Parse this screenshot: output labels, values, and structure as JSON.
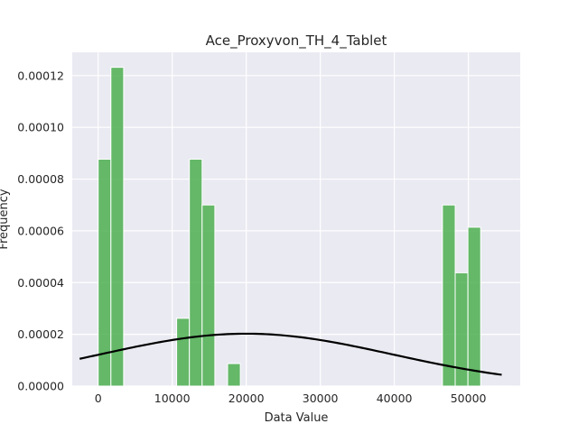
{
  "chart_data": {
    "type": "bar",
    "title": "Ace_Proxyvon_TH_4_Tablet",
    "xlabel": "Data Value",
    "ylabel": "Frequency",
    "xlim": [
      -3500,
      57000
    ],
    "ylim": [
      0,
      0.000129
    ],
    "x_ticks": [
      0,
      10000,
      20000,
      30000,
      40000,
      50000
    ],
    "y_ticks": [
      0.0,
      2e-05,
      4e-05,
      6e-05,
      8e-05,
      0.0001,
      0.00012
    ],
    "x_tick_labels": [
      "0",
      "10000",
      "20000",
      "30000",
      "40000",
      "50000"
    ],
    "y_tick_labels": [
      "0.00000",
      "0.00002",
      "0.00004",
      "0.00006",
      "0.00008",
      "0.00010",
      "0.00012"
    ],
    "grid": true,
    "bar_color": "#4caf50",
    "curve_color": "#000000",
    "background": "#eaeaf2",
    "bins": [
      {
        "x0": 0,
        "x1": 1720,
        "value": 8.77e-05
      },
      {
        "x0": 1720,
        "x1": 3440,
        "value": 0.0001232
      },
      {
        "x0": 10600,
        "x1": 12320,
        "value": 2.62e-05
      },
      {
        "x0": 12320,
        "x1": 14040,
        "value": 8.77e-05
      },
      {
        "x0": 14040,
        "x1": 15760,
        "value": 7e-05
      },
      {
        "x0": 17480,
        "x1": 19200,
        "value": 8.7e-06
      },
      {
        "x0": 46500,
        "x1": 48220,
        "value": 7e-05
      },
      {
        "x0": 48220,
        "x1": 49940,
        "value": 4.38e-05
      },
      {
        "x0": 49940,
        "x1": 51660,
        "value": 6.14e-05
      }
    ],
    "normal_curve": {
      "mean": 20000,
      "std": 19700,
      "x_start": -2500,
      "x_end": 54500
    }
  }
}
